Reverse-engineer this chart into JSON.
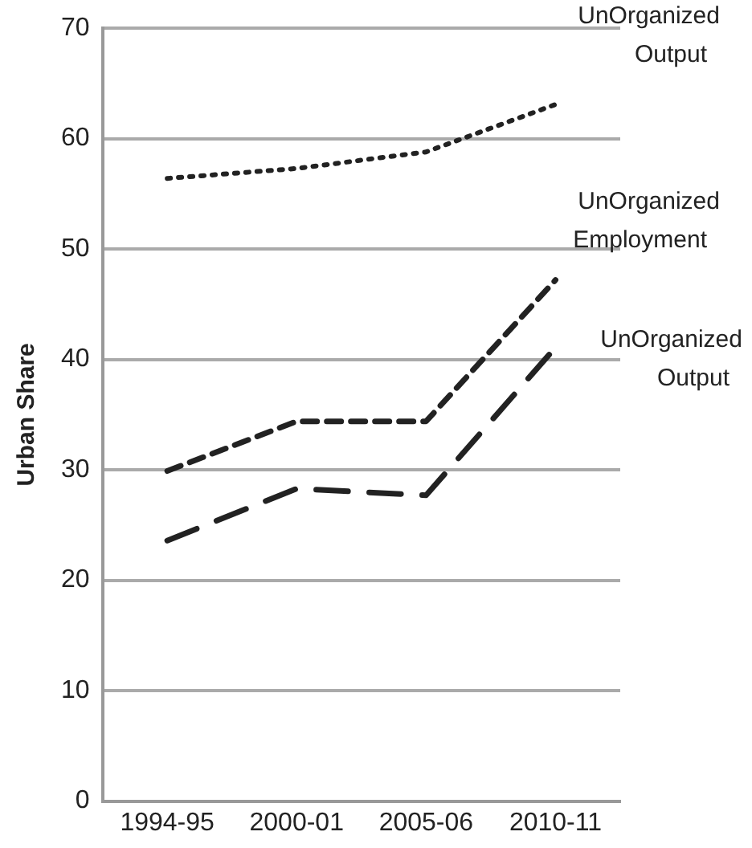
{
  "chart_data": {
    "type": "line",
    "ylabel": "Urban Share",
    "categories": [
      "1994-95",
      "2000-01",
      "2005-06",
      "2010-11"
    ],
    "series": [
      {
        "name": "UnOrganized Output",
        "color": "#222222",
        "line_style": "dotted",
        "values": [
          56.4,
          57.3,
          58.8,
          63.1
        ]
      },
      {
        "name": "UnOrganized Employment",
        "color": "#222222",
        "line_style": "dashed",
        "values": [
          29.9,
          34.4,
          34.4,
          47.2
        ]
      },
      {
        "name": "UnOrganized Output",
        "color": "#222222",
        "line_style": "dashed",
        "values": [
          23.6,
          28.3,
          27.7,
          41.1
        ]
      }
    ],
    "ylim": [
      0,
      70
    ],
    "yticks": [
      0,
      10,
      20,
      30,
      40,
      50,
      60,
      70
    ],
    "grid": "y",
    "legend": false,
    "marker": "none"
  }
}
